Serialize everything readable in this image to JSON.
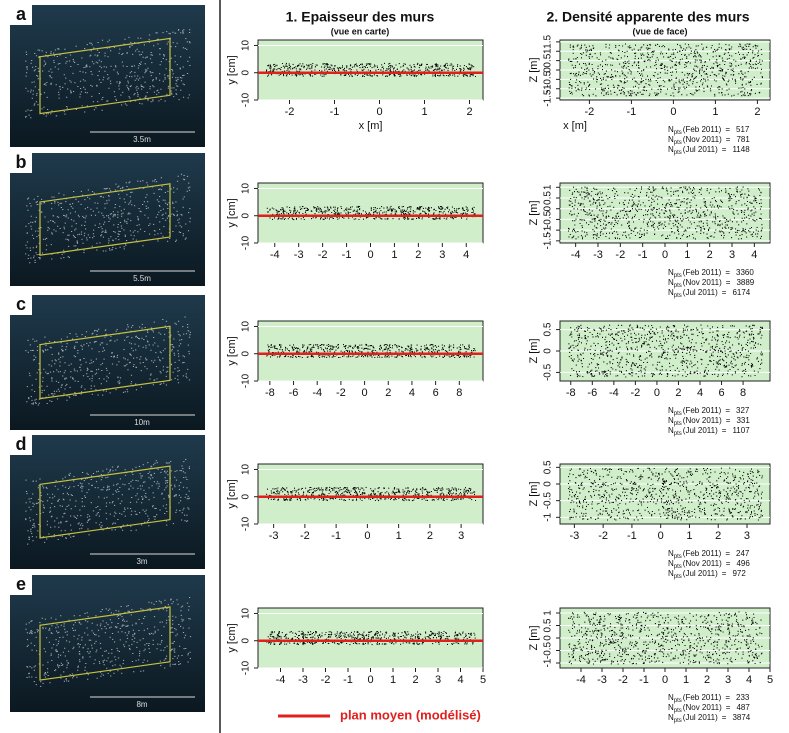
{
  "header": {
    "col1_title": "1. Epaisseur des murs",
    "col1_sub": "(vue en carte)",
    "col2_title": "2. Densité apparente  des murs",
    "col2_sub": "(vue de face)"
  },
  "panels": [
    {
      "label": "a",
      "scale": "3.5m",
      "thickness": {
        "ylabel": "y [cm]",
        "xlabel": "x [m]",
        "xlim": [
          -2.7,
          2.3
        ],
        "ylim": [
          -10,
          12
        ],
        "xticks": [
          -2,
          -1,
          0,
          1,
          2
        ],
        "yticks": [
          -10,
          0,
          10
        ]
      },
      "density": {
        "ylabel": "Z [m]",
        "xlabel": "x [m]",
        "xlim": [
          -2.7,
          2.3
        ],
        "ylim": [
          -1.6,
          1.6
        ],
        "xticks": [
          -2,
          -1,
          0,
          1,
          2
        ],
        "yticks": [
          -1.5,
          -1,
          -0.5,
          0,
          0.5,
          1,
          1.5
        ]
      },
      "counts": [
        {
          "n": "N",
          "sub": "pts",
          "when": "(Feb 2011)",
          "eq": "=",
          "value": 517
        },
        {
          "n": "N",
          "sub": "pts",
          "when": "(Nov 2011)",
          "eq": "=",
          "value": 781
        },
        {
          "n": "N",
          "sub": "pts",
          "when": "(Jul 2011)",
          "eq": "=",
          "value": 1148
        }
      ]
    },
    {
      "label": "b",
      "scale": "5.5m",
      "thickness": {
        "ylabel": "y [cm]",
        "xlim": [
          -4.7,
          4.7
        ],
        "ylim": [
          -10,
          12
        ],
        "xticks": [
          -4,
          -3,
          -2,
          -1,
          0,
          1,
          2,
          3,
          4
        ],
        "yticks": [
          -10,
          0,
          10
        ]
      },
      "density": {
        "ylabel": "Z [m]",
        "xlim": [
          -4.7,
          4.7
        ],
        "ylim": [
          -1.6,
          1.2
        ],
        "xticks": [
          -4,
          -3,
          -2,
          -1,
          0,
          1,
          2,
          3,
          4
        ],
        "yticks": [
          -1.5,
          -1,
          -0.5,
          0,
          0.5,
          1
        ]
      },
      "counts": [
        {
          "n": "N",
          "sub": "pts",
          "when": "(Feb 2011)",
          "eq": "=",
          "value": 3360
        },
        {
          "n": "N",
          "sub": "pts",
          "when": "(Nov 2011)",
          "eq": "=",
          "value": 3889
        },
        {
          "n": "N",
          "sub": "pts",
          "when": "(Jul 2011)",
          "eq": "=",
          "value": 6174
        }
      ]
    },
    {
      "label": "c",
      "scale": "10m",
      "thickness": {
        "ylabel": "y [cm]",
        "xlim": [
          -9,
          10
        ],
        "ylim": [
          -10,
          12
        ],
        "xticks": [
          -8,
          -6,
          -4,
          -2,
          0,
          2,
          4,
          6,
          8
        ],
        "yticks": [
          -10,
          0,
          10
        ]
      },
      "density": {
        "ylabel": "Z [m]",
        "xlim": [
          -9,
          10.5
        ],
        "ylim": [
          -0.7,
          0.7
        ],
        "xticks": [
          -8,
          -6,
          -4,
          -2,
          0,
          2,
          4,
          6,
          8
        ],
        "yticks": [
          -0.5,
          0,
          0.5
        ]
      },
      "counts": [
        {
          "n": "N",
          "sub": "pts",
          "when": "(Feb 2011)",
          "eq": "=",
          "value": 327
        },
        {
          "n": "N",
          "sub": "pts",
          "when": "(Nov 2011)",
          "eq": "=",
          "value": 331
        },
        {
          "n": "N",
          "sub": "pts",
          "when": "(Jul 2011)",
          "eq": "=",
          "value": 1107
        }
      ]
    },
    {
      "label": "d",
      "scale": "3m",
      "thickness": {
        "ylabel": "y [cm]",
        "xlim": [
          -3.5,
          3.7
        ],
        "ylim": [
          -10,
          12
        ],
        "xticks": [
          -3,
          -2,
          -1,
          0,
          1,
          2,
          3
        ],
        "yticks": [
          -10,
          0,
          10
        ]
      },
      "density": {
        "ylabel": "Z [m]",
        "xlim": [
          -3.5,
          3.8
        ],
        "ylim": [
          -1.2,
          0.6
        ],
        "xticks": [
          -3,
          -2,
          -1,
          0,
          1,
          2,
          3
        ],
        "yticks": [
          -1,
          -0.5,
          0,
          0.5
        ]
      },
      "counts": [
        {
          "n": "N",
          "sub": "pts",
          "when": "(Feb 2011)",
          "eq": "=",
          "value": 247
        },
        {
          "n": "N",
          "sub": "pts",
          "when": "(Nov 2011)",
          "eq": "=",
          "value": 496
        },
        {
          "n": "N",
          "sub": "pts",
          "when": "(Jul 2011)",
          "eq": "=",
          "value": 972
        }
      ]
    },
    {
      "label": "e",
      "scale": "8m",
      "thickness": {
        "ylabel": "y [cm]",
        "xlim": [
          -5,
          5
        ],
        "ylim": [
          -10,
          12
        ],
        "xticks": [
          -4,
          -3,
          -2,
          -1,
          0,
          1,
          2,
          3,
          4,
          5
        ],
        "yticks": [
          -10,
          0,
          10
        ]
      },
      "density": {
        "ylabel": "Z [m]",
        "xlim": [
          -5,
          5
        ],
        "ylim": [
          -1.2,
          1.2
        ],
        "xticks": [
          -4,
          -3,
          -2,
          -1,
          0,
          1,
          2,
          3,
          4,
          5
        ],
        "yticks": [
          -1,
          -0.5,
          0,
          0.5,
          1
        ]
      },
      "counts": [
        {
          "n": "N",
          "sub": "pts",
          "when": "(Feb 2011)",
          "eq": "=",
          "value": 233
        },
        {
          "n": "N",
          "sub": "pts",
          "when": "(Nov 2011)",
          "eq": "=",
          "value": 487
        },
        {
          "n": "N",
          "sub": "pts",
          "when": "(Jul 2011)",
          "eq": "=",
          "value": 3874
        }
      ]
    }
  ],
  "legend": {
    "label": "plan moyen (modélisé)",
    "color": "#e0201c"
  }
}
